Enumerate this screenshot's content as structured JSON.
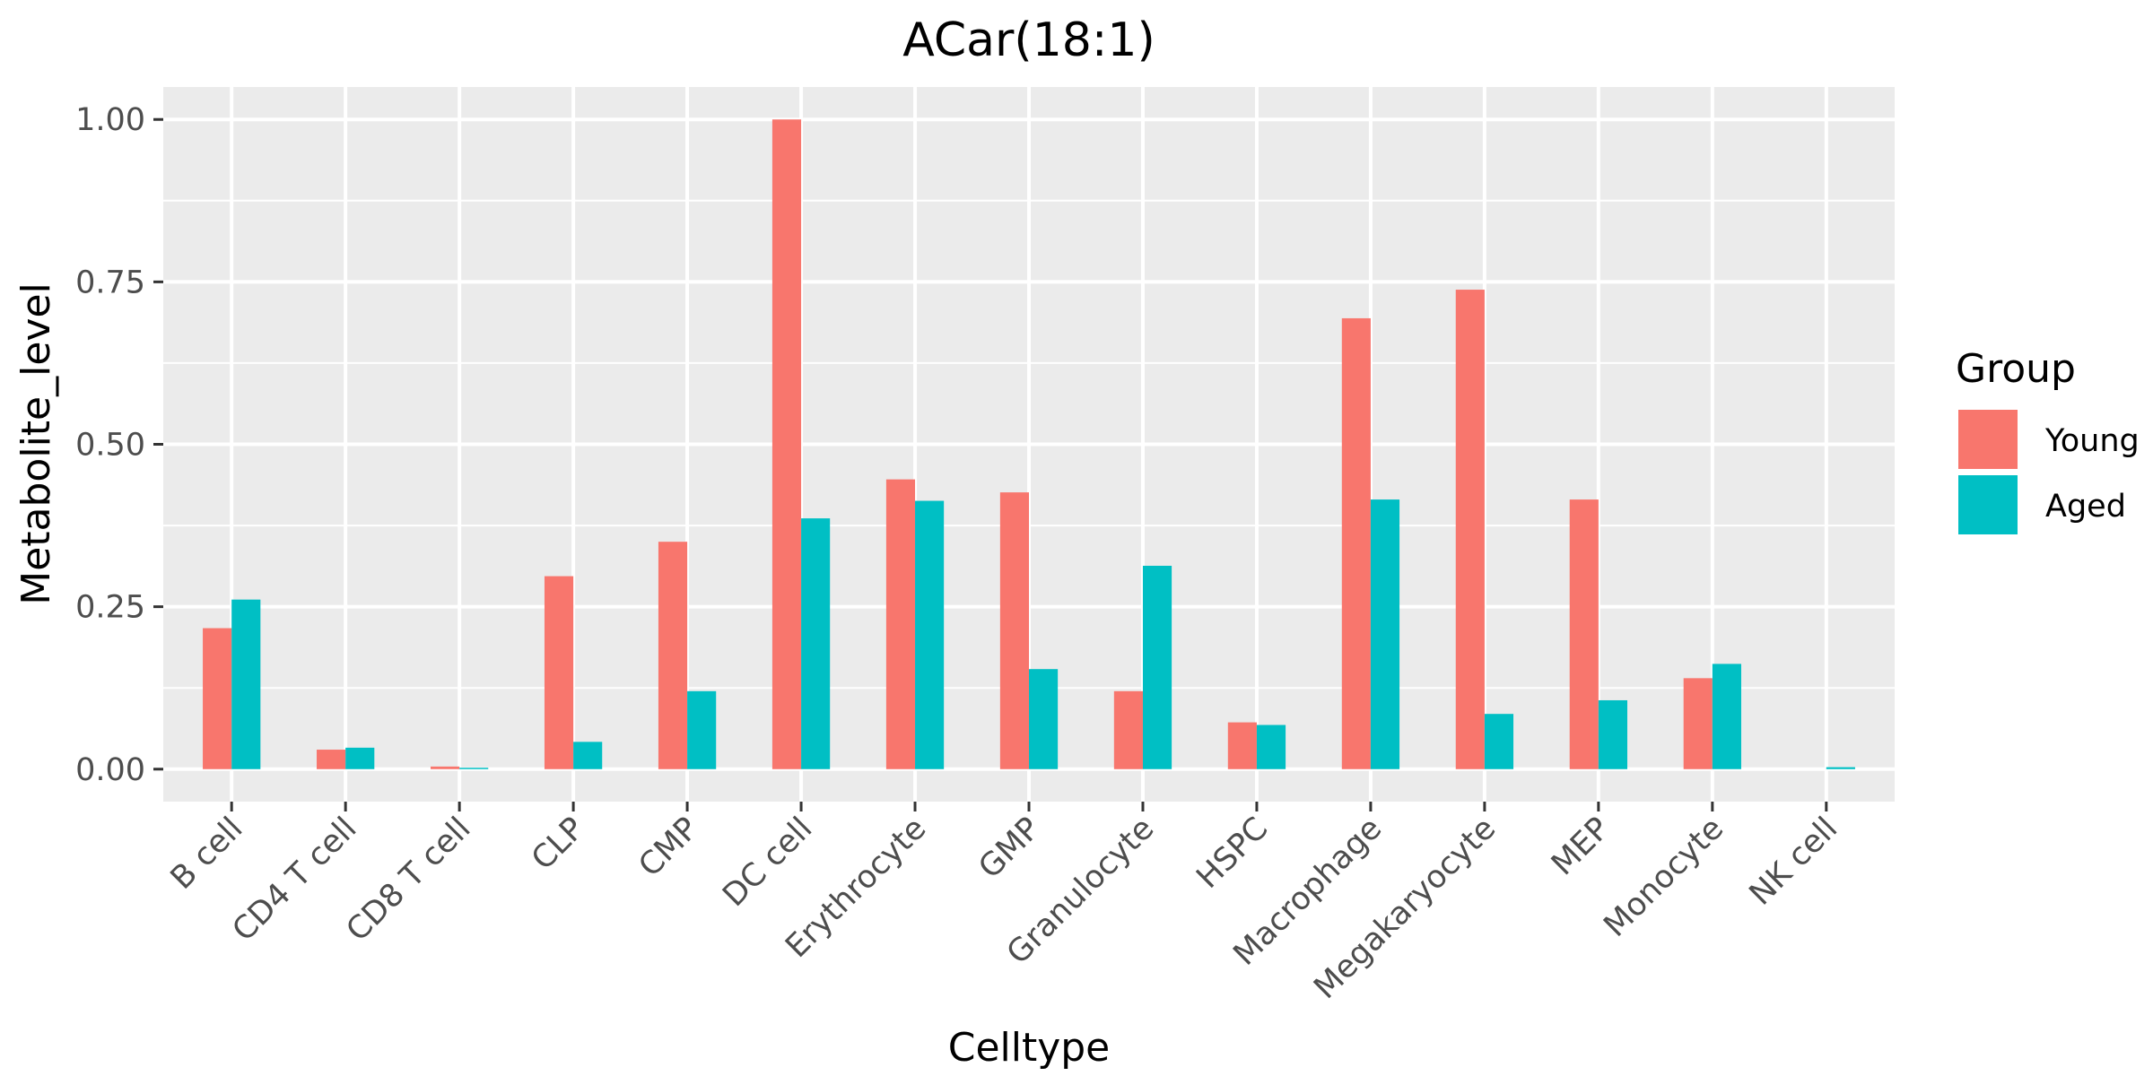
{
  "chart_data": {
    "type": "bar",
    "title": "ACar(18:1)",
    "xlabel": "Celltype",
    "ylabel": "Metabolite_level",
    "categories": [
      "B cell",
      "CD4 T cell",
      "CD8 T cell",
      "CLP",
      "CMP",
      "DC cell",
      "Erythrocyte",
      "GMP",
      "Granulocyte",
      "HSPC",
      "Macrophage",
      "Megakaryocyte",
      "MEP",
      "Monocyte",
      "NK cell"
    ],
    "series": [
      {
        "name": "Young",
        "color": "#F8766D",
        "values": [
          0.217,
          0.03,
          0.004,
          0.297,
          0.35,
          1.0,
          0.446,
          0.426,
          0.12,
          0.072,
          0.694,
          0.738,
          0.415,
          0.14,
          0.0
        ]
      },
      {
        "name": "Aged",
        "color": "#00BFC4",
        "values": [
          0.261,
          0.033,
          0.001,
          0.042,
          0.12,
          0.386,
          0.413,
          0.154,
          0.313,
          0.068,
          0.415,
          0.085,
          0.106,
          0.162,
          0.003
        ]
      }
    ],
    "ylim": [
      -0.05,
      1.05
    ],
    "yticks": [
      0,
      0.25,
      0.5,
      0.75,
      1.0
    ],
    "ytick_labels": [
      "0.00",
      "0.25",
      "0.50",
      "0.75",
      "1.00"
    ],
    "legend": {
      "title": "Group",
      "position": "right"
    },
    "grid": true,
    "background": "#EBEBEB",
    "grid_color": "#FFFFFF"
  }
}
